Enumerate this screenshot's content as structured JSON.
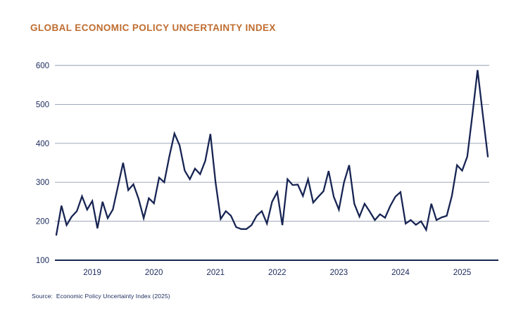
{
  "header": {
    "title": "GLOBAL ECONOMIC POLICY UNCERTAINTY INDEX"
  },
  "footer": {
    "source": "Source:  Economic Policy Uncertainty Index (2025)"
  },
  "chart_data": {
    "type": "line",
    "title": "GLOBAL ECONOMIC POLICY UNCERTAINTY INDEX",
    "series_name": "Global Economic Policy Uncertainty Index",
    "xlabel": "",
    "ylabel": "",
    "ylim": [
      100,
      600
    ],
    "yticks": [
      100,
      200,
      300,
      400,
      500,
      600
    ],
    "xticks": [
      "2019",
      "2020",
      "2021",
      "2022",
      "2023",
      "2024",
      "2025"
    ],
    "grid": true,
    "legend": false,
    "colors": {
      "line": "#182553",
      "grid": "#929cb0",
      "axis": "#182553",
      "text": "#1b2a5c",
      "title": "#bf6c2f"
    },
    "x": [
      "2018-06",
      "2018-07",
      "2018-08",
      "2018-09",
      "2018-10",
      "2018-11",
      "2018-12",
      "2019-01",
      "2019-02",
      "2019-03",
      "2019-04",
      "2019-05",
      "2019-06",
      "2019-07",
      "2019-08",
      "2019-09",
      "2019-10",
      "2019-11",
      "2019-12",
      "2020-01",
      "2020-02",
      "2020-03",
      "2020-04",
      "2020-05",
      "2020-06",
      "2020-07",
      "2020-08",
      "2020-09",
      "2020-10",
      "2020-11",
      "2020-12",
      "2021-01",
      "2021-02",
      "2021-03",
      "2021-04",
      "2021-05",
      "2021-06",
      "2021-07",
      "2021-08",
      "2021-09",
      "2021-10",
      "2021-11",
      "2021-12",
      "2022-01",
      "2022-02",
      "2022-03",
      "2022-04",
      "2022-05",
      "2022-06",
      "2022-07",
      "2022-08",
      "2022-09",
      "2022-10",
      "2022-11",
      "2022-12",
      "2023-01",
      "2023-02",
      "2023-03",
      "2023-04",
      "2023-05",
      "2023-06",
      "2023-07",
      "2023-08",
      "2023-09",
      "2023-10",
      "2023-11",
      "2023-12",
      "2024-01",
      "2024-02",
      "2024-03",
      "2024-04",
      "2024-05",
      "2024-06",
      "2024-07",
      "2024-08",
      "2024-09",
      "2024-10",
      "2024-11",
      "2024-12",
      "2025-01",
      "2025-02",
      "2025-03",
      "2025-04",
      "2025-05",
      "2025-06"
    ],
    "values": [
      165,
      240,
      190,
      212,
      226,
      264,
      230,
      252,
      182,
      250,
      208,
      230,
      290,
      350,
      280,
      295,
      258,
      208,
      259,
      246,
      312,
      300,
      366,
      425,
      395,
      330,
      308,
      335,
      321,
      355,
      424,
      300,
      206,
      226,
      214,
      185,
      180,
      180,
      190,
      214,
      226,
      194,
      250,
      275,
      190,
      308,
      293,
      294,
      265,
      308,
      248,
      263,
      277,
      329,
      263,
      230,
      300,
      344,
      245,
      212,
      245,
      225,
      203,
      218,
      209,
      239,
      263,
      275,
      194,
      203,
      191,
      200,
      178,
      245,
      203,
      210,
      214,
      265,
      344,
      330,
      366,
      474,
      588,
      476,
      366
    ]
  }
}
